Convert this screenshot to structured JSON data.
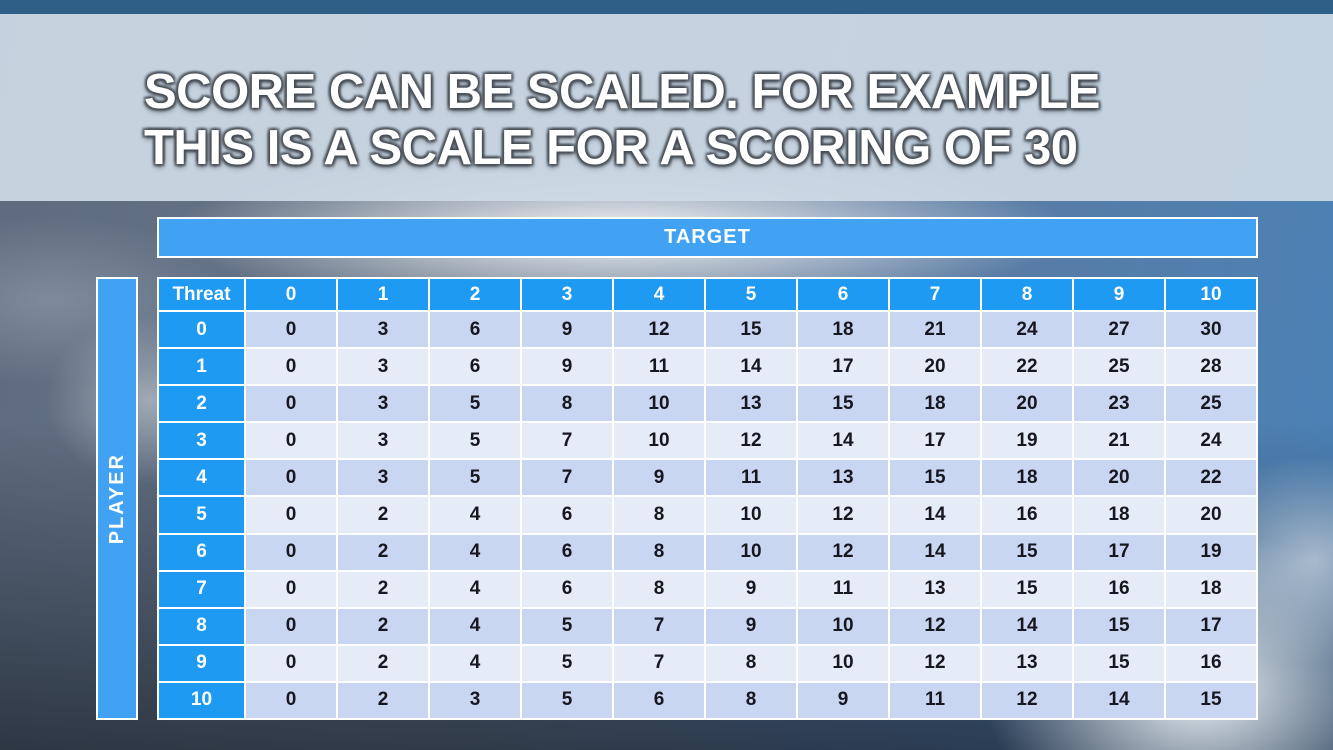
{
  "slide": {
    "title_line1": "SCORE CAN BE SCALED. FOR EXAMPLE",
    "title_line2": "THIS IS A SCALE FOR A SCORING OF 30"
  },
  "chart_data": {
    "type": "table",
    "target_label": "TARGET",
    "player_label": "PLAYER",
    "corner_label": "Threat",
    "column_headers": [
      "0",
      "1",
      "2",
      "3",
      "4",
      "5",
      "6",
      "7",
      "8",
      "9",
      "10"
    ],
    "row_headers": [
      "0",
      "1",
      "2",
      "3",
      "4",
      "5",
      "6",
      "7",
      "8",
      "9",
      "10"
    ],
    "rows": [
      [
        0,
        3,
        6,
        9,
        12,
        15,
        18,
        21,
        24,
        27,
        30
      ],
      [
        0,
        3,
        6,
        9,
        11,
        14,
        17,
        20,
        22,
        25,
        28
      ],
      [
        0,
        3,
        5,
        8,
        10,
        13,
        15,
        18,
        20,
        23,
        25
      ],
      [
        0,
        3,
        5,
        7,
        10,
        12,
        14,
        17,
        19,
        21,
        24
      ],
      [
        0,
        3,
        5,
        7,
        9,
        11,
        13,
        15,
        18,
        20,
        22
      ],
      [
        0,
        2,
        4,
        6,
        8,
        10,
        12,
        14,
        16,
        18,
        20
      ],
      [
        0,
        2,
        4,
        6,
        8,
        10,
        12,
        14,
        15,
        17,
        19
      ],
      [
        0,
        2,
        4,
        6,
        8,
        9,
        11,
        13,
        15,
        16,
        18
      ],
      [
        0,
        2,
        4,
        5,
        7,
        9,
        10,
        12,
        14,
        15,
        17
      ],
      [
        0,
        2,
        4,
        5,
        7,
        8,
        10,
        12,
        13,
        15,
        16
      ],
      [
        0,
        2,
        3,
        5,
        6,
        8,
        9,
        11,
        12,
        14,
        15
      ]
    ]
  },
  "colors": {
    "top_bar": "#2e5f86",
    "bar_blue": "#41a1f2",
    "header_blue": "#1e9af3",
    "row_even": "#c9d6f2",
    "row_odd": "#e6ebf8",
    "cell_text": "#17171f"
  }
}
